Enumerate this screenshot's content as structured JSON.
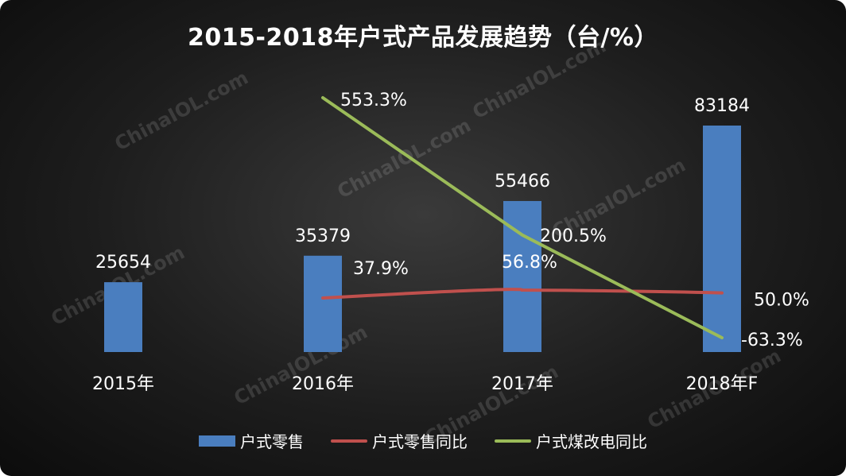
{
  "watermark": "ChinaIOL.com",
  "chart_data": {
    "type": "bar",
    "title": "2015-2018年户式产品发展趋势（台/%）",
    "categories": [
      "2015年",
      "2016年",
      "2017年",
      "2018年F"
    ],
    "series": [
      {
        "name": "户式零售",
        "type": "bar",
        "color": "#4a7ebf",
        "values": [
          25654,
          35379,
          55466,
          83184
        ],
        "labels": [
          "25654",
          "35379",
          "55466",
          "83184"
        ]
      },
      {
        "name": "户式零售同比",
        "type": "line",
        "color": "#c0504d",
        "values": [
          null,
          37.9,
          56.8,
          50.0
        ],
        "labels": [
          "",
          "37.9%",
          "56.8%",
          "50.0%"
        ]
      },
      {
        "name": "户式煤改电同比",
        "type": "line",
        "color": "#9bbb59",
        "values": [
          null,
          553.3,
          200.5,
          -63.3
        ],
        "labels": [
          "",
          "553.3%",
          "200.5%",
          "-63.3%"
        ]
      }
    ],
    "legend": "bottom",
    "grid": false
  }
}
